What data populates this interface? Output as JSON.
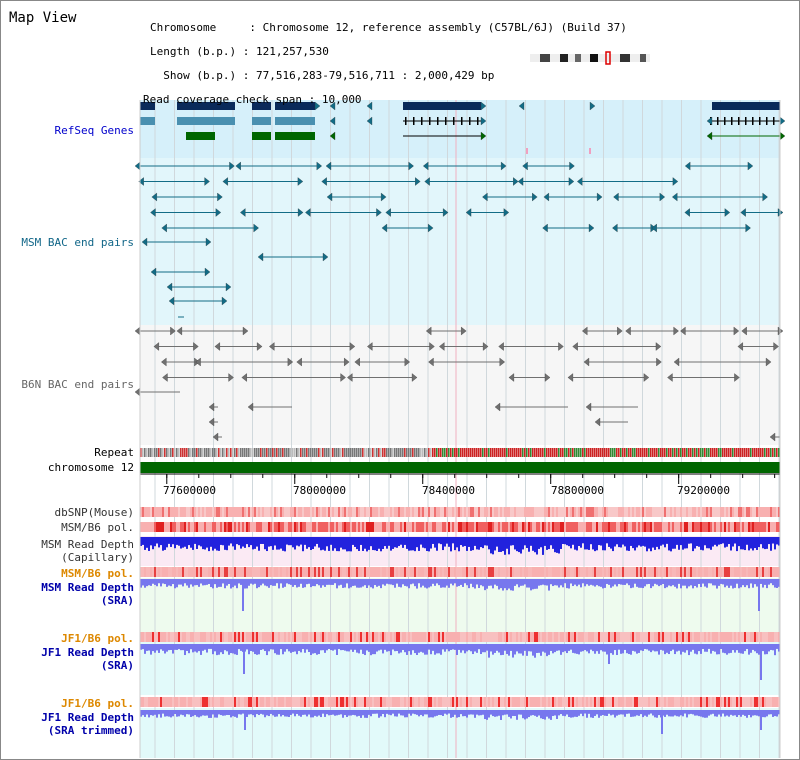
{
  "header": {
    "title": "Map View",
    "info_lines": [
      {
        "label": "Chromosome     ",
        "value": ": Chromosome 12, reference assembly (C57BL/6J) (Build 37)"
      },
      {
        "label": "Length (b.p.) ",
        "value": ": 121,257,530"
      },
      {
        "label": "  Show (b.p.) ",
        "value": ": 77,516,283-79,516,711 : 2,000,429 bp"
      },
      {
        "label": "Read coverage check span ",
        "value": ": 10,000"
      }
    ]
  },
  "tracks": {
    "refseq": "RefSeq Genes",
    "msm_bac": "MSM BAC end pairs",
    "b6n_bac": "B6N BAC end pairs",
    "repeat": "Repeat",
    "chromosome": "chromosome 12",
    "dbsnp": "dbSNP(Mouse)",
    "msm_b6_pol_1": "MSM/B6 pol.",
    "msm_depth_cap_1": "MSM Read Depth",
    "msm_depth_cap_2": "(Capillary)",
    "msm_b6_pol_2": "MSM/B6 pol.",
    "msm_depth_sra_1": "MSM Read Depth",
    "msm_depth_sra_2": "(SRA)",
    "jf1_b6_pol_1": "JF1/B6 pol.",
    "jf1_depth_sra_1": "JF1 Read Depth",
    "jf1_depth_sra_2": "(SRA)",
    "jf1_b6_pol_2": "JF1/B6 pol.",
    "jf1_depth_trim_1": "JF1 Read Depth",
    "jf1_depth_trim_2": "(SRA trimmed)"
  },
  "axis": {
    "ticks": [
      "77600000",
      "78000000",
      "78400000",
      "78800000",
      "79200000"
    ],
    "tick_values": [
      77600000,
      78000000,
      78400000,
      78800000,
      79200000
    ],
    "start": 77516283,
    "end": 79516711
  },
  "colors": {
    "refseq_dark": "#0a2a5a",
    "refseq_mid": "#4a90b0",
    "refseq_green": "#006600",
    "msm_bac": "#126c86",
    "b6n_bac": "#707070",
    "chrom_green": "#006600",
    "pol_red": "#ee4444",
    "depth_blue": "#2222dd",
    "depth_light": "#7777ee"
  }
}
